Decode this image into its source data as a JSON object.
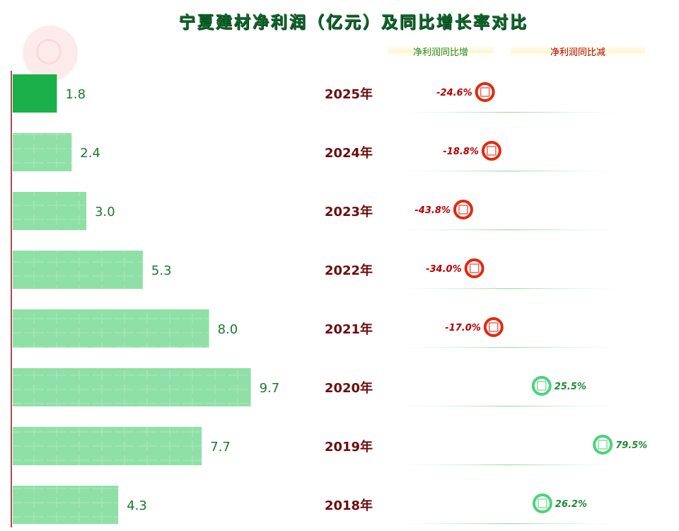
{
  "chart_data": {
    "type": "bar",
    "title": "宁夏建材净利润（亿元）及同比增长率对比",
    "categories": [
      "2025年",
      "2024年",
      "2023年",
      "2022年",
      "2021年",
      "2020年",
      "2019年",
      "2018年"
    ],
    "value_labels": [
      "1.8",
      "2.4",
      "3.0",
      "5.3",
      "8.0",
      "9.7",
      "7.7",
      "4.3"
    ],
    "values": [
      1.8,
      2.4,
      3.0,
      5.3,
      8.0,
      9.7,
      7.7,
      4.3
    ],
    "growth_labels": [
      "-24.6%",
      "-18.8%",
      "-43.8%",
      "-34.0%",
      "-17.0%",
      "25.5%",
      "79.5%",
      "26.2%"
    ],
    "growth": [
      -24.6,
      -18.8,
      -43.8,
      -34.0,
      -17.0,
      25.5,
      79.5,
      26.2
    ],
    "legend": [
      "净利润同比增",
      "净利润同比减"
    ],
    "colors": {
      "bar": "#8fe0a6",
      "bar_highlight": "#1bb04a",
      "value_text": "#1a7a2a",
      "year_text": "#6b0c0c",
      "increase": "#1e8b35",
      "increase_marker": "#4fd17e",
      "decrease": "#b40000",
      "decrease_marker": "#e02a10",
      "axis": "#8b0000"
    }
  }
}
